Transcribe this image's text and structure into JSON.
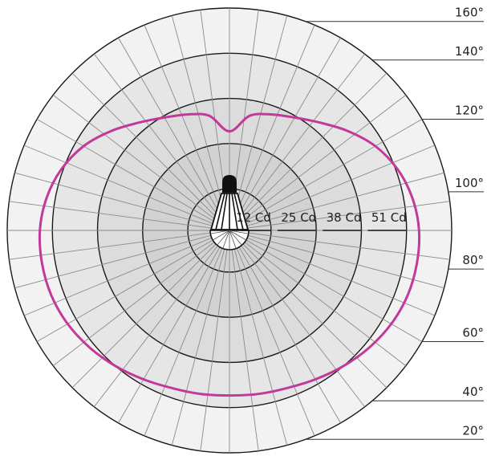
{
  "chart_data": {
    "type": "polar",
    "radial_unit": "Cd",
    "radial_ticks": [
      {
        "value": 12,
        "label": "12 Cd"
      },
      {
        "value": 25,
        "label": "25 Cd"
      },
      {
        "value": 38,
        "label": "38 Cd"
      },
      {
        "value": 51,
        "label": "51 Cd"
      }
    ],
    "rmax": 64,
    "angle_labels": [
      "160°",
      "140°",
      "120°",
      "100°",
      "80°",
      "60°",
      "40°",
      "20°"
    ],
    "angle_label_values": [
      160,
      140,
      120,
      100,
      80,
      60,
      40,
      20
    ],
    "spoke_step_deg": 7.5,
    "series": [
      {
        "angles_deg": [
          0,
          10,
          20,
          30,
          40,
          50,
          60,
          70,
          80,
          90,
          100,
          110,
          120,
          130,
          140,
          150,
          160,
          170,
          180
        ],
        "values": [
          47.5,
          47.8,
          48.3,
          49.5,
          51.0,
          52.5,
          53.8,
          54.6,
          54.8,
          54.6,
          53.5,
          51.5,
          48.5,
          44.5,
          40.5,
          37.5,
          35.5,
          33.5,
          28.5
        ]
      }
    ],
    "colors": {
      "curve": "#c2399a",
      "ring_outer": "#f2f2f2",
      "ring_2": "#e6e6e6",
      "ring_3": "#dcdcdc",
      "ring_inner": "#d2d2d2"
    }
  }
}
